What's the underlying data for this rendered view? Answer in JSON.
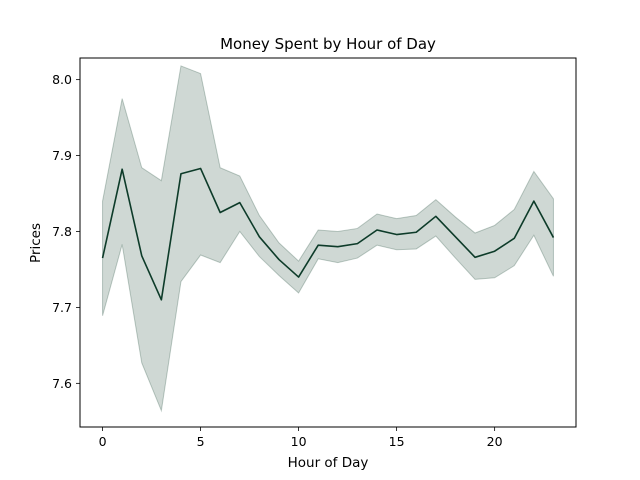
{
  "chart_data": {
    "type": "line",
    "title": "Money Spent by Hour of Day",
    "xlabel": "Hour of Day",
    "ylabel": "Prices",
    "xlim": [
      -1.15,
      24.15
    ],
    "ylim": [
      7.5425,
      8.0285
    ],
    "xticks": [
      0,
      5,
      10,
      15,
      20
    ],
    "yticks": [
      7.6,
      7.7,
      7.8,
      7.9,
      8.0
    ],
    "grid": false,
    "legend": "none",
    "series": [
      {
        "x": [
          0,
          1,
          2,
          3,
          4,
          5,
          6,
          7,
          8,
          9,
          10,
          11,
          12,
          13,
          14,
          15,
          16,
          17,
          18,
          19,
          20,
          21,
          22,
          23
        ],
        "y": [
          7.765,
          7.882,
          7.768,
          7.71,
          7.876,
          7.883,
          7.825,
          7.838,
          7.793,
          7.763,
          7.74,
          7.782,
          7.78,
          7.784,
          7.802,
          7.796,
          7.799,
          7.82,
          7.793,
          7.766,
          7.774,
          7.791,
          7.84,
          7.792
        ],
        "ci_lower": [
          7.689,
          7.783,
          7.627,
          7.564,
          7.734,
          7.769,
          7.759,
          7.8,
          7.767,
          7.742,
          7.719,
          7.764,
          7.759,
          7.765,
          7.782,
          7.776,
          7.777,
          7.794,
          7.765,
          7.737,
          7.739,
          7.755,
          7.795,
          7.741
        ],
        "ci_upper": [
          7.84,
          7.975,
          7.884,
          7.867,
          8.018,
          8.008,
          7.884,
          7.873,
          7.821,
          7.785,
          7.761,
          7.802,
          7.8,
          7.804,
          7.823,
          7.817,
          7.821,
          7.842,
          7.819,
          7.798,
          7.808,
          7.829,
          7.879,
          7.843
        ],
        "color": "#0d3b29",
        "band_color": "#0d3b29"
      }
    ]
  }
}
